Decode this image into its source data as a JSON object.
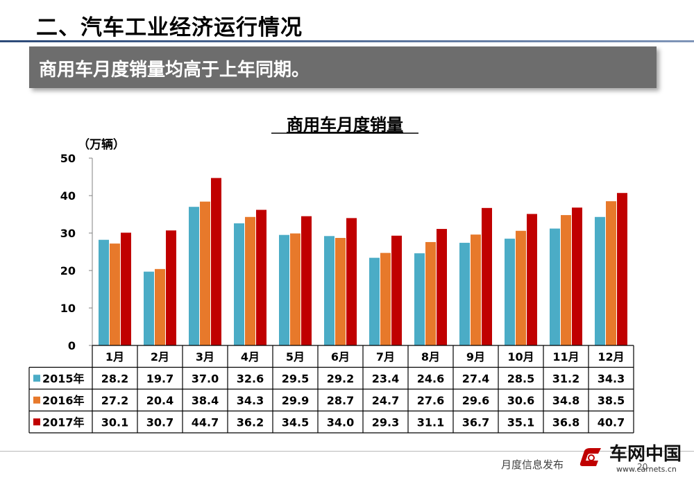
{
  "slide": {
    "title": "二、汽车工业经济运行情况",
    "banner": "商用车月度销量均高于上年同期。",
    "footer_text": "月度信息发布",
    "page_number": "20"
  },
  "logo": {
    "name": "车网中国",
    "url": "www.carnets.cn"
  },
  "chart_data": {
    "type": "bar",
    "title": "商用车月度销量",
    "ylabel": "（万辆）",
    "ylim": [
      0,
      50
    ],
    "yticks": [
      0,
      10,
      20,
      30,
      40,
      50
    ],
    "grid": false,
    "legend": "data-table",
    "categories": [
      "1月",
      "2月",
      "3月",
      "4月",
      "5月",
      "6月",
      "7月",
      "8月",
      "9月",
      "10月",
      "11月",
      "12月"
    ],
    "series": [
      {
        "name": "2015年",
        "color": "#4bacc6",
        "values": [
          28.2,
          19.7,
          37.0,
          32.6,
          29.5,
          29.2,
          23.4,
          24.6,
          27.4,
          28.5,
          31.2,
          34.3
        ]
      },
      {
        "name": "2016年",
        "color": "#e7792b",
        "values": [
          27.2,
          20.4,
          38.4,
          34.3,
          29.9,
          28.7,
          24.7,
          27.6,
          29.6,
          30.6,
          34.8,
          38.5
        ]
      },
      {
        "name": "2017年",
        "color": "#c00000",
        "values": [
          30.1,
          30.7,
          44.7,
          36.2,
          34.5,
          34.0,
          29.3,
          31.1,
          36.7,
          35.1,
          36.8,
          40.7
        ]
      }
    ],
    "table_values": [
      [
        "28.2",
        "19.7",
        "37.0",
        "32.6",
        "29.5",
        "29.2",
        "23.4",
        "24.6",
        "27.4",
        "28.5",
        "31.2",
        "34.3"
      ],
      [
        "27.2",
        "20.4",
        "38.4",
        "34.3",
        "29.9",
        "28.7",
        "24.7",
        "27.6",
        "29.6",
        "30.6",
        "34.8",
        "38.5"
      ],
      [
        "30.1",
        "30.7",
        "44.7",
        "36.2",
        "34.5",
        "34.0",
        "29.3",
        "31.1",
        "36.7",
        "35.1",
        "36.8",
        "40.7"
      ]
    ]
  }
}
